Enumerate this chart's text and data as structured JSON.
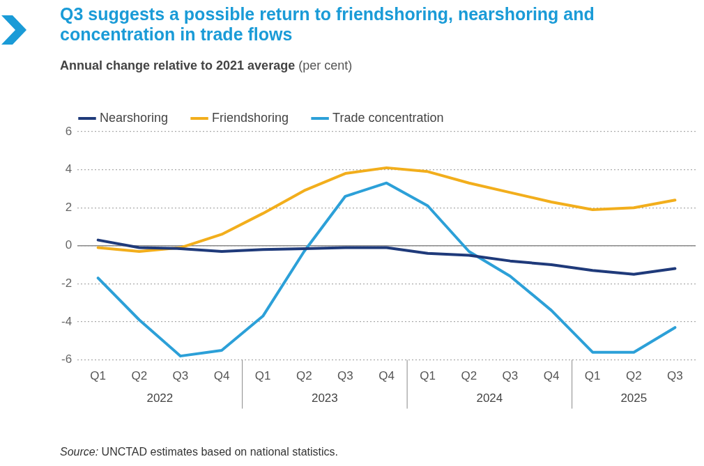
{
  "chart_data": {
    "type": "line",
    "title": "Q3 suggests a possible return to friendshoring, nearshoring and concentration in trade flows",
    "subtitle": "Annual change relative to 2021 average (per cent)",
    "categories": [
      "Q1",
      "Q2",
      "Q3",
      "Q4",
      "Q1",
      "Q2",
      "Q3",
      "Q4",
      "Q1",
      "Q2",
      "Q3",
      "Q4",
      "Q1",
      "Q2",
      "Q3"
    ],
    "series": [
      {
        "name": "Nearshoring",
        "color": "#1f3a7a",
        "values": [
          0.3,
          -0.1,
          -0.15,
          -0.3,
          -0.2,
          -0.15,
          -0.1,
          -0.1,
          -0.4,
          -0.5,
          -0.8,
          -1.0,
          -1.3,
          -1.5,
          -1.2
        ]
      },
      {
        "name": "Friendshoring",
        "color": "#f2ae1c",
        "values": [
          -0.1,
          -0.3,
          -0.1,
          0.6,
          1.7,
          2.9,
          3.8,
          4.1,
          3.9,
          3.3,
          2.8,
          2.3,
          1.9,
          2.0,
          2.4
        ]
      },
      {
        "name": "Trade concentration",
        "color": "#2ca0d8",
        "values": [
          -1.7,
          -3.9,
          -5.8,
          -5.5,
          -3.7,
          -0.3,
          2.6,
          3.3,
          2.1,
          -0.3,
          -1.6,
          -3.4,
          -5.6,
          -5.6,
          -4.3
        ]
      }
    ],
    "ylim": [
      -6,
      6
    ],
    "yticks": [
      -6,
      -4,
      -2,
      0,
      2,
      4,
      6
    ],
    "grid": "y",
    "legend": "top left",
    "marker": "none",
    "line_style": "solid",
    "ref_lines": [
      {
        "axis": "y",
        "value": 0,
        "color": "#888888"
      }
    ],
    "annotations": [
      "2022",
      "2023",
      "2024",
      "2025",
      "Source: UNCTAD estimates based on national statistics."
    ]
  }
}
